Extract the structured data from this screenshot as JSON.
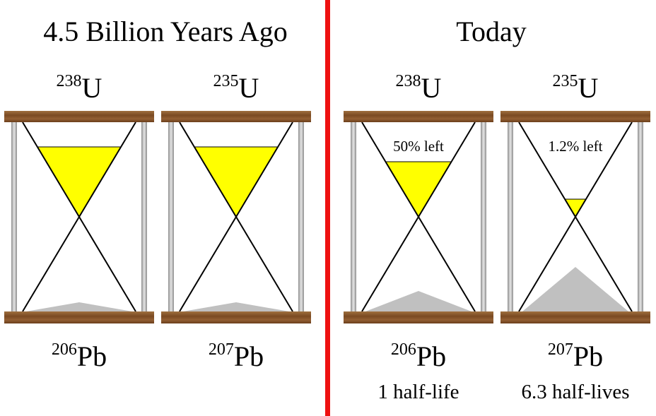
{
  "panels": [
    {
      "title": "4.5 Billion Years Ago",
      "hourglasses": [
        {
          "parent": {
            "mass": "238",
            "symbol": "U"
          },
          "daughter": {
            "mass": "206",
            "symbol": "Pb"
          }
        },
        {
          "parent": {
            "mass": "235",
            "symbol": "U"
          },
          "daughter": {
            "mass": "207",
            "symbol": "Pb"
          }
        }
      ]
    },
    {
      "title": "Today",
      "hourglasses": [
        {
          "parent": {
            "mass": "238",
            "symbol": "U"
          },
          "daughter": {
            "mass": "206",
            "symbol": "Pb"
          },
          "remaining": "50% left",
          "caption": "1 half-life"
        },
        {
          "parent": {
            "mass": "235",
            "symbol": "U"
          },
          "daughter": {
            "mass": "207",
            "symbol": "Pb"
          },
          "remaining": "1.2% left",
          "caption": "6.3 half-lives"
        }
      ]
    }
  ]
}
